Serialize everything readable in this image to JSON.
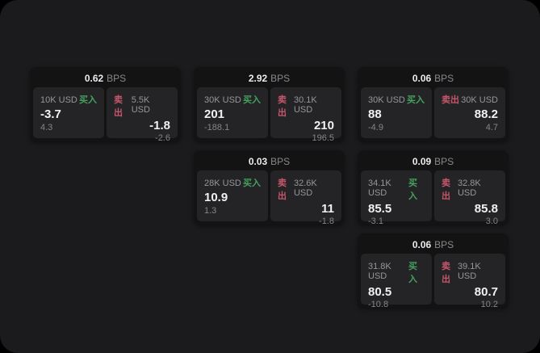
{
  "labels": {
    "bps_unit": "BPS",
    "buy": "买入",
    "sell": "卖出"
  },
  "colors": {
    "buy": "#44a25e",
    "sell": "#c5566b",
    "surface": "#1b1b1d",
    "card": "#131314",
    "panel": "#242426"
  },
  "cards": [
    {
      "bps": "0.62",
      "grid": {
        "row": 1,
        "col": 1
      },
      "buy": {
        "amount": "10K USD",
        "price": "-3.7",
        "delta": "4.3"
      },
      "sell": {
        "amount": "5.5K USD",
        "price": "-1.8",
        "delta": "-2.6"
      }
    },
    {
      "bps": "2.92",
      "grid": {
        "row": 1,
        "col": 2
      },
      "buy": {
        "amount": "30K USD",
        "price": "201",
        "delta": "-188.1"
      },
      "sell": {
        "amount": "30.1K USD",
        "price": "210",
        "delta": "196.5"
      }
    },
    {
      "bps": "0.06",
      "grid": {
        "row": 1,
        "col": 3
      },
      "buy": {
        "amount": "30K USD",
        "price": "88",
        "delta": "-4.9"
      },
      "sell": {
        "amount": "30K USD",
        "price": "88.2",
        "delta": "4.7"
      }
    },
    {
      "bps": "0.03",
      "grid": {
        "row": 2,
        "col": 2
      },
      "buy": {
        "amount": "28K USD",
        "price": "10.9",
        "delta": "1.3"
      },
      "sell": {
        "amount": "32.6K USD",
        "price": "11",
        "delta": "-1.8"
      }
    },
    {
      "bps": "0.09",
      "grid": {
        "row": 2,
        "col": 3
      },
      "buy": {
        "amount": "34.1K USD",
        "price": "85.5",
        "delta": "-3.1"
      },
      "sell": {
        "amount": "32.8K USD",
        "price": "85.8",
        "delta": "3.0"
      }
    },
    {
      "bps": "0.06",
      "grid": {
        "row": 3,
        "col": 3
      },
      "buy": {
        "amount": "31.8K USD",
        "price": "80.5",
        "delta": "-10.8"
      },
      "sell": {
        "amount": "39.1K USD",
        "price": "80.7",
        "delta": "10.2"
      }
    }
  ]
}
